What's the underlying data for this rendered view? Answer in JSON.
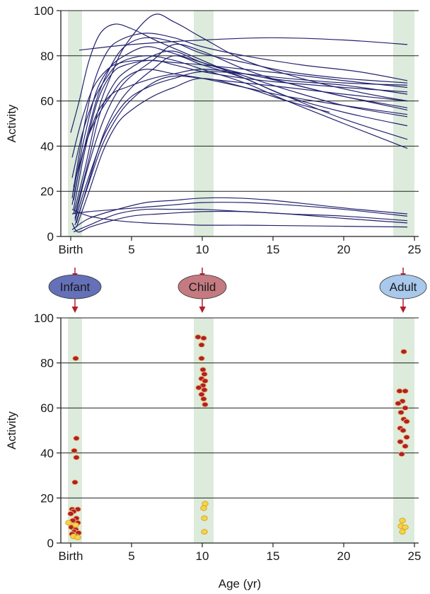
{
  "colors": {
    "band": "#dcebdc",
    "curve": "#22226e",
    "high_marker": "#b01e2e",
    "low_marker": "#f5d44a",
    "arrow": "#b01e2e",
    "infant_fill": "#6470b8",
    "child_fill": "#c47a80",
    "adult_fill": "#a8c8ec"
  },
  "stages": [
    {
      "label": "Infant",
      "age": 1
    },
    {
      "label": "Child",
      "age": 10
    },
    {
      "label": "Adult",
      "age": 24.2
    }
  ],
  "chart_data": [
    {
      "type": "line",
      "ylabel": "Activity",
      "xlabel": "",
      "xlim": [
        0,
        25.3
      ],
      "ylim": [
        0,
        100
      ],
      "x_ticks": [
        {
          "v": 0.7,
          "label": "Birth"
        },
        {
          "v": 5,
          "label": "5"
        },
        {
          "v": 10,
          "label": "10"
        },
        {
          "v": 15,
          "label": "15"
        },
        {
          "v": 20,
          "label": "20"
        },
        {
          "v": 25,
          "label": "25"
        }
      ],
      "y_ticks": [
        0,
        20,
        40,
        60,
        80,
        100
      ],
      "grid": "horizontal",
      "bands": [
        [
          0.5,
          1.5
        ],
        [
          9.4,
          10.8
        ],
        [
          23.5,
          25.0
        ]
      ],
      "series": [
        {
          "x": [
            1.3,
            5,
            10,
            15,
            20,
            24.5
          ],
          "y": [
            82.5,
            85,
            87,
            88,
            87,
            85
          ]
        },
        {
          "x": [
            0.8,
            1.5,
            2.5,
            3.5,
            4.5,
            6,
            8,
            10,
            13,
            16,
            20,
            24.5
          ],
          "y": [
            14,
            35,
            60,
            75,
            84,
            88,
            86,
            81,
            77,
            73,
            70,
            68
          ]
        },
        {
          "x": [
            0.9,
            1.7,
            2.6,
            3.6,
            4.6,
            6.5,
            8,
            10,
            13,
            17,
            21,
            24.5
          ],
          "y": [
            10,
            30,
            55,
            72,
            85,
            98,
            95,
            88,
            78,
            70,
            64,
            60
          ]
        },
        {
          "x": [
            0.8,
            1.4,
            2.2,
            3.2,
            4.2,
            6,
            8,
            10,
            13,
            17,
            21,
            24.5
          ],
          "y": [
            17,
            40,
            65,
            81,
            87,
            90,
            88,
            84,
            80,
            76,
            73,
            69
          ]
        },
        {
          "x": [
            0.9,
            1.6,
            2.5,
            3.5,
            4.5,
            6,
            7.5,
            10,
            13,
            16,
            20,
            24.5
          ],
          "y": [
            20,
            42,
            64,
            75,
            80,
            84,
            82,
            77,
            72,
            69,
            67,
            63
          ]
        },
        {
          "x": [
            1.0,
            1.8,
            2.8,
            3.8,
            4.8,
            6.5,
            8,
            10,
            13,
            16,
            20,
            24.5
          ],
          "y": [
            8,
            28,
            48,
            62,
            70,
            78,
            85,
            82,
            74,
            68,
            62,
            56
          ]
        },
        {
          "x": [
            1.1,
            2,
            3,
            4,
            5,
            6.5,
            8,
            10,
            13,
            16,
            20,
            24.5
          ],
          "y": [
            6,
            25,
            45,
            58,
            66,
            74,
            80,
            76,
            70,
            62,
            55,
            49
          ]
        },
        {
          "x": [
            1.0,
            1.9,
            2.8,
            3.8,
            4.8,
            6.5,
            8,
            10,
            13,
            16,
            20,
            24.5
          ],
          "y": [
            10,
            32,
            55,
            68,
            74,
            80,
            82,
            77,
            71,
            65,
            58,
            53
          ]
        },
        {
          "x": [
            0.9,
            1.7,
            2.6,
            3.6,
            4.6,
            6.5,
            8,
            10,
            13,
            16,
            20,
            24.5
          ],
          "y": [
            12,
            38,
            60,
            72,
            76,
            78,
            76,
            73,
            70,
            68,
            66,
            64
          ]
        },
        {
          "x": [
            1.0,
            1.9,
            3,
            4,
            5,
            6.5,
            8,
            10,
            13,
            16,
            20,
            24.5
          ],
          "y": [
            7,
            25,
            44,
            55,
            62,
            67,
            70,
            73,
            72,
            70,
            68,
            67
          ]
        },
        {
          "x": [
            0.7,
            1.3,
            2.0,
            2.8,
            3.8,
            5,
            7,
            10,
            13,
            16,
            20,
            24.5
          ],
          "y": [
            46,
            60,
            78,
            90,
            94,
            92,
            86,
            78,
            70,
            62,
            52,
            43
          ]
        },
        {
          "x": [
            0.8,
            1.5,
            2.3,
            3.2,
            4.2,
            6,
            8,
            10,
            13,
            16,
            20,
            24.5
          ],
          "y": [
            26,
            45,
            60,
            70,
            77,
            80,
            78,
            74,
            68,
            60,
            50,
            39
          ]
        },
        {
          "x": [
            0.9,
            1.6,
            2.5,
            3.5,
            4.5,
            6,
            8,
            10,
            13,
            16,
            20,
            24.5
          ],
          "y": [
            16,
            38,
            52,
            62,
            70,
            74,
            72,
            70,
            66,
            62,
            58,
            54
          ]
        },
        {
          "x": [
            1.1,
            2,
            3,
            4,
            5,
            6.5,
            8,
            10,
            13,
            16,
            19
          ],
          "y": [
            4,
            20,
            38,
            50,
            56,
            62,
            66,
            70,
            66,
            60,
            55
          ]
        },
        {
          "x": [
            1.0,
            1.9,
            2.9,
            3.9,
            4.9,
            6.5,
            8,
            10,
            13,
            16,
            20,
            24.5
          ],
          "y": [
            5,
            22,
            40,
            52,
            60,
            68,
            71,
            70,
            68,
            66,
            63,
            60
          ]
        },
        {
          "x": [
            0.8,
            1.5,
            2.3,
            3.3,
            4.3,
            6,
            8,
            10,
            13,
            16,
            20,
            24.5
          ],
          "y": [
            35,
            52,
            66,
            74,
            77,
            78,
            77,
            76,
            74,
            72,
            69,
            66
          ]
        },
        {
          "x": [
            0.9,
            1.7,
            2.6,
            3.6,
            4.6,
            6.5,
            8,
            10,
            13,
            16,
            20,
            24.5
          ],
          "y": [
            22,
            40,
            55,
            63,
            66,
            70,
            72,
            74,
            72,
            68,
            62,
            57
          ]
        },
        {
          "x": [
            0.8,
            2,
            4,
            6,
            8,
            10,
            12.5,
            15,
            18,
            21,
            24.5
          ],
          "y": [
            3,
            8,
            12,
            15,
            16,
            17,
            17,
            16,
            14,
            12,
            10
          ]
        },
        {
          "x": [
            0.8,
            2,
            4,
            6,
            8,
            10,
            13,
            16,
            20,
            24.5
          ],
          "y": [
            10,
            11,
            12,
            13,
            14,
            15,
            15,
            14,
            12,
            9
          ]
        },
        {
          "x": [
            0.8,
            2,
            4,
            6,
            8,
            10,
            13,
            16,
            20,
            24.5
          ],
          "y": [
            12,
            9,
            7,
            6,
            5.5,
            5,
            5,
            4.8,
            4.5,
            4.2
          ]
        },
        {
          "x": [
            0.8,
            1.2,
            2,
            3,
            5,
            7,
            10,
            13,
            16,
            20,
            24.5
          ],
          "y": [
            6,
            2,
            4,
            6,
            9,
            10,
            11,
            11,
            10,
            9,
            7
          ]
        },
        {
          "x": [
            0.9,
            2,
            4,
            6,
            8,
            10,
            13,
            16,
            20,
            24.5
          ],
          "y": [
            2,
            5,
            10,
            12,
            12,
            12,
            11,
            10,
            8,
            6
          ]
        }
      ]
    },
    {
      "type": "scatter",
      "ylabel": "Activity",
      "xlabel": "Age (yr)",
      "xlim": [
        0,
        25.3
      ],
      "ylim": [
        0,
        100
      ],
      "x_ticks": [
        {
          "v": 0.7,
          "label": "Birth"
        },
        {
          "v": 5,
          "label": "5"
        },
        {
          "v": 10,
          "label": "10"
        },
        {
          "v": 15,
          "label": "15"
        },
        {
          "v": 20,
          "label": "20"
        },
        {
          "v": 25,
          "label": "25"
        }
      ],
      "y_ticks": [
        0,
        20,
        40,
        60,
        80,
        100
      ],
      "grid": "horizontal",
      "bands": [
        [
          0.5,
          1.5
        ],
        [
          9.4,
          10.8
        ],
        [
          23.5,
          25.0
        ]
      ],
      "series": [
        {
          "marker": "high",
          "points": [
            [
              1.05,
              82
            ],
            [
              1.1,
              46.5
            ],
            [
              0.95,
              41
            ],
            [
              1.1,
              38
            ],
            [
              1.0,
              27
            ],
            [
              0.8,
              15
            ],
            [
              1.2,
              15
            ],
            [
              0.9,
              14
            ],
            [
              0.7,
              13
            ],
            [
              1.1,
              11
            ],
            [
              0.85,
              10
            ],
            [
              1.2,
              9
            ],
            [
              0.75,
              7
            ],
            [
              1.05,
              6
            ],
            [
              0.95,
              5
            ],
            [
              1.25,
              4.5
            ],
            [
              0.8,
              4
            ],
            [
              1.1,
              3
            ],
            [
              9.7,
              91.5
            ],
            [
              10.1,
              91
            ],
            [
              9.95,
              88
            ],
            [
              9.95,
              82
            ],
            [
              10.05,
              77
            ],
            [
              10.15,
              75
            ],
            [
              9.95,
              73
            ],
            [
              10.2,
              72
            ],
            [
              10.05,
              70
            ],
            [
              9.75,
              69
            ],
            [
              10.15,
              68
            ],
            [
              9.95,
              66
            ],
            [
              10.1,
              64
            ],
            [
              10.2,
              61.5
            ],
            [
              24.25,
              85
            ],
            [
              23.95,
              67.5
            ],
            [
              24.35,
              67.5
            ],
            [
              24.15,
              63
            ],
            [
              23.85,
              62
            ],
            [
              24.35,
              60
            ],
            [
              24.05,
              58
            ],
            [
              24.25,
              55
            ],
            [
              24.45,
              54
            ],
            [
              24.0,
              51
            ],
            [
              24.2,
              50
            ],
            [
              24.45,
              47
            ],
            [
              24.0,
              45
            ],
            [
              24.35,
              43
            ],
            [
              24.1,
              39.5
            ]
          ]
        },
        {
          "marker": "low",
          "points": [
            [
              0.55,
              9
            ],
            [
              1.05,
              8
            ],
            [
              0.9,
              3
            ],
            [
              1.2,
              2.5
            ],
            [
              10.2,
              17.5
            ],
            [
              10.1,
              15.5
            ],
            [
              10.15,
              11
            ],
            [
              10.15,
              5
            ],
            [
              24.15,
              10
            ],
            [
              24.05,
              7.5
            ],
            [
              24.35,
              7
            ],
            [
              24.15,
              5
            ]
          ]
        }
      ]
    }
  ]
}
